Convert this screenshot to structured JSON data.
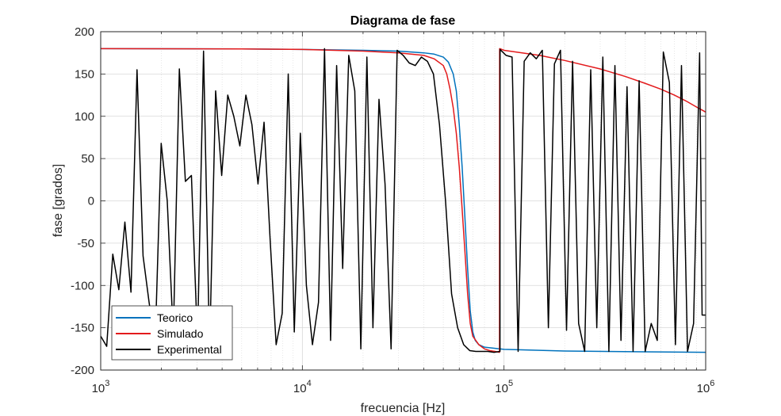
{
  "chart_data": {
    "type": "line",
    "title": "Diagrama de fase",
    "xlabel": "frecuencia [Hz]",
    "ylabel": "fase [grados]",
    "xscale": "log",
    "xlim": [
      1000,
      1000000
    ],
    "ylim": [
      -200,
      200
    ],
    "xticks": [
      {
        "value": 1000,
        "base": "10",
        "exp": "3"
      },
      {
        "value": 10000,
        "base": "10",
        "exp": "4"
      },
      {
        "value": 100000,
        "base": "10",
        "exp": "5"
      },
      {
        "value": 1000000,
        "base": "10",
        "exp": "6"
      }
    ],
    "yticks": [
      200,
      150,
      100,
      50,
      0,
      -50,
      -100,
      -150,
      -200
    ],
    "grid": true,
    "legend_position": "bottom-left",
    "series": [
      {
        "name": "Teorico",
        "color": "#0072BD",
        "x": [
          1000,
          5000,
          10000,
          20000,
          30000,
          40000,
          45000,
          50000,
          53000,
          56000,
          58000,
          60000,
          62000,
          64000,
          66000,
          68000,
          70000,
          72000,
          75000,
          80000,
          100000,
          200000,
          500000,
          1000000
        ],
        "y": [
          180,
          179.6,
          179,
          178,
          177,
          175,
          173.5,
          170,
          164,
          150,
          130,
          90,
          40,
          -20,
          -80,
          -130,
          -155,
          -165,
          -170,
          -173,
          -175.5,
          -177.5,
          -178.5,
          -179
        ]
      },
      {
        "name": "Simulado",
        "color": "#E31A1C",
        "x": [
          1000,
          5000,
          10000,
          20000,
          30000,
          40000,
          45000,
          50000,
          52000,
          54000,
          56000,
          58000,
          60000,
          62000,
          64000,
          66000,
          68000,
          70000,
          75000,
          80000,
          85000,
          90000,
          95000,
          95100,
          100000,
          150000,
          200000,
          300000,
          400000,
          500000,
          600000,
          700000,
          800000,
          900000,
          1000000
        ],
        "y": [
          180,
          179.6,
          179,
          177,
          175,
          172,
          168,
          160,
          150,
          132,
          110,
          80,
          40,
          -10,
          -60,
          -110,
          -145,
          -160,
          -170,
          -175,
          -177,
          -178,
          -179,
          180,
          178,
          172,
          166,
          156,
          147,
          139,
          132,
          125,
          118,
          111,
          105
        ]
      },
      {
        "name": "Experimental",
        "color": "#000000",
        "x": [
          1000,
          1071,
          1148,
          1230,
          1318,
          1413,
          1514,
          1622,
          1738,
          1862,
          1995,
          2138,
          2291,
          2455,
          2630,
          2818,
          3020,
          3236,
          3467,
          3715,
          3981,
          4266,
          4571,
          4898,
          5248,
          5623,
          6026,
          6457,
          6918,
          7413,
          7943,
          8511,
          9120,
          9772,
          10471,
          11220,
          12023,
          12882,
          13804,
          14791,
          15849,
          16982,
          18197,
          19498,
          20893,
          22387,
          23988,
          25704,
          27542,
          29512,
          31623,
          33884,
          36308,
          38905,
          41687,
          44668,
          47863,
          51286,
          54954,
          58884,
          63096,
          67608,
          72444,
          77625,
          83176,
          89125,
          95499,
          95600,
          102329,
          109648,
          117490,
          125893,
          134896,
          144544,
          154882,
          165959,
          177828,
          190546,
          204174,
          218776,
          234423,
          251189,
          269153,
          288403,
          309030,
          331131,
          354813,
          380189,
          407380,
          436516,
          467735,
          501187,
          537032,
          575440,
          616595,
          660693,
          707946,
          758578,
          812831,
          870964,
          933254,
          960000,
          1000000
        ],
        "y": [
          -160,
          -172,
          -63,
          -105,
          -25,
          -108,
          155,
          -65,
          -120,
          -170,
          68,
          0,
          -160,
          156,
          23,
          30,
          -168,
          177,
          -178,
          130,
          30,
          125,
          100,
          65,
          125,
          90,
          20,
          93,
          -45,
          -170,
          -133,
          150,
          -155,
          80,
          -100,
          -170,
          -120,
          180,
          -165,
          160,
          -80,
          172,
          130,
          -175,
          170,
          -150,
          120,
          20,
          -175,
          178,
          172,
          163,
          160,
          170,
          165,
          150,
          90,
          0,
          -110,
          -150,
          -170,
          -177,
          -178,
          -178,
          -178,
          -179,
          -178,
          179,
          172,
          170,
          -178,
          165,
          175,
          168,
          178,
          -150,
          162,
          178,
          -153,
          165,
          -145,
          -178,
          155,
          -150,
          170,
          -178,
          160,
          -165,
          135,
          -178,
          142,
          -178,
          -145,
          -165,
          176,
          140,
          -170,
          160,
          -178,
          -145,
          175,
          -135,
          -135
        ]
      }
    ]
  }
}
